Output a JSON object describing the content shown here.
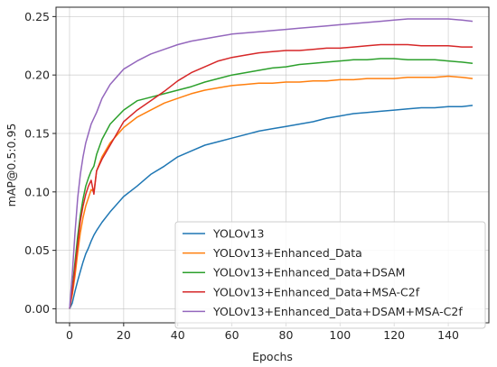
{
  "chart_data": {
    "type": "line",
    "title": "",
    "xlabel": "Epochs",
    "ylabel": "mAP@0.5:0.95",
    "xlim": [
      -5,
      155
    ],
    "ylim": [
      -0.012,
      0.258
    ],
    "xticks": [
      0,
      20,
      40,
      60,
      80,
      100,
      120,
      140
    ],
    "xtick_labels": [
      "0",
      "20",
      "40",
      "60",
      "80",
      "100",
      "120",
      "140"
    ],
    "yticks": [
      0.0,
      0.05,
      0.1,
      0.15,
      0.2,
      0.25
    ],
    "ytick_labels": [
      "0.00",
      "0.05",
      "0.10",
      "0.15",
      "0.20",
      "0.25"
    ],
    "grid": true,
    "legend_position": "lower-right",
    "x": [
      0,
      1,
      2,
      3,
      4,
      5,
      6,
      7,
      8,
      9,
      10,
      12,
      15,
      20,
      25,
      30,
      35,
      40,
      45,
      50,
      55,
      60,
      65,
      70,
      75,
      80,
      85,
      90,
      95,
      100,
      105,
      110,
      115,
      120,
      125,
      130,
      135,
      140,
      145,
      149
    ],
    "series": [
      {
        "name": "YOLOv13",
        "color": "#1f77b4",
        "values": [
          0.0,
          0.005,
          0.015,
          0.024,
          0.032,
          0.04,
          0.047,
          0.052,
          0.058,
          0.063,
          0.067,
          0.074,
          0.083,
          0.096,
          0.105,
          0.115,
          0.122,
          0.13,
          0.135,
          0.14,
          0.143,
          0.146,
          0.149,
          0.152,
          0.154,
          0.156,
          0.158,
          0.16,
          0.163,
          0.165,
          0.167,
          0.168,
          0.169,
          0.17,
          0.171,
          0.172,
          0.172,
          0.173,
          0.173,
          0.174
        ]
      },
      {
        "name": "YOLOv13+Enhanced_Data",
        "color": "#ff7f0e",
        "values": [
          0.0,
          0.012,
          0.028,
          0.048,
          0.065,
          0.078,
          0.088,
          0.095,
          0.102,
          0.1,
          0.118,
          0.13,
          0.142,
          0.155,
          0.164,
          0.17,
          0.176,
          0.18,
          0.184,
          0.187,
          0.189,
          0.191,
          0.192,
          0.193,
          0.193,
          0.194,
          0.194,
          0.195,
          0.195,
          0.196,
          0.196,
          0.197,
          0.197,
          0.197,
          0.198,
          0.198,
          0.198,
          0.199,
          0.198,
          0.197
        ]
      },
      {
        "name": "YOLOv13+Enhanced_Data+DSAM",
        "color": "#2ca02c",
        "values": [
          0.0,
          0.018,
          0.04,
          0.062,
          0.08,
          0.094,
          0.105,
          0.112,
          0.118,
          0.122,
          0.132,
          0.145,
          0.158,
          0.17,
          0.178,
          0.181,
          0.184,
          0.187,
          0.19,
          0.194,
          0.197,
          0.2,
          0.202,
          0.204,
          0.206,
          0.207,
          0.209,
          0.21,
          0.211,
          0.212,
          0.213,
          0.213,
          0.214,
          0.214,
          0.213,
          0.213,
          0.213,
          0.212,
          0.211,
          0.21
        ]
      },
      {
        "name": "YOLOv13+Enhanced_Data+MSA-C2f",
        "color": "#d62728",
        "values": [
          0.0,
          0.015,
          0.035,
          0.055,
          0.075,
          0.088,
          0.098,
          0.105,
          0.11,
          0.098,
          0.118,
          0.128,
          0.14,
          0.16,
          0.17,
          0.178,
          0.186,
          0.195,
          0.202,
          0.207,
          0.212,
          0.215,
          0.217,
          0.219,
          0.22,
          0.221,
          0.221,
          0.222,
          0.223,
          0.223,
          0.224,
          0.225,
          0.226,
          0.226,
          0.226,
          0.225,
          0.225,
          0.225,
          0.224,
          0.224
        ]
      },
      {
        "name": "YOLOv13+Enhanced_Data+DSAM+MSA-C2f",
        "color": "#9467bd",
        "values": [
          0.0,
          0.03,
          0.065,
          0.095,
          0.115,
          0.13,
          0.142,
          0.15,
          0.158,
          0.163,
          0.168,
          0.18,
          0.192,
          0.205,
          0.212,
          0.218,
          0.222,
          0.226,
          0.229,
          0.231,
          0.233,
          0.235,
          0.236,
          0.237,
          0.238,
          0.239,
          0.24,
          0.241,
          0.242,
          0.243,
          0.244,
          0.245,
          0.246,
          0.247,
          0.248,
          0.248,
          0.248,
          0.248,
          0.247,
          0.246
        ]
      }
    ]
  }
}
